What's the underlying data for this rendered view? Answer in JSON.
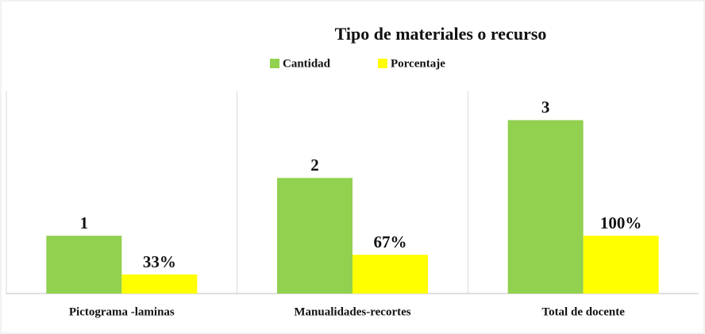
{
  "chart_data": {
    "type": "bar",
    "title": "Tipo de materiales o recurso",
    "categories": [
      "Pictograma -laminas",
      "Manualidades-recortes",
      "Total de docente"
    ],
    "series": [
      {
        "name": "Cantidad",
        "color": "#92d050",
        "values": [
          1,
          2,
          3
        ]
      },
      {
        "name": "Porcentaje",
        "color": "#ffff00",
        "axis": "y2",
        "values": [
          33,
          67,
          100
        ],
        "value_labels": [
          "33%",
          "67%",
          "100%"
        ]
      }
    ],
    "ylim": [
      0,
      3.5
    ],
    "y2lim": [
      0,
      350
    ],
    "legend": "top"
  }
}
